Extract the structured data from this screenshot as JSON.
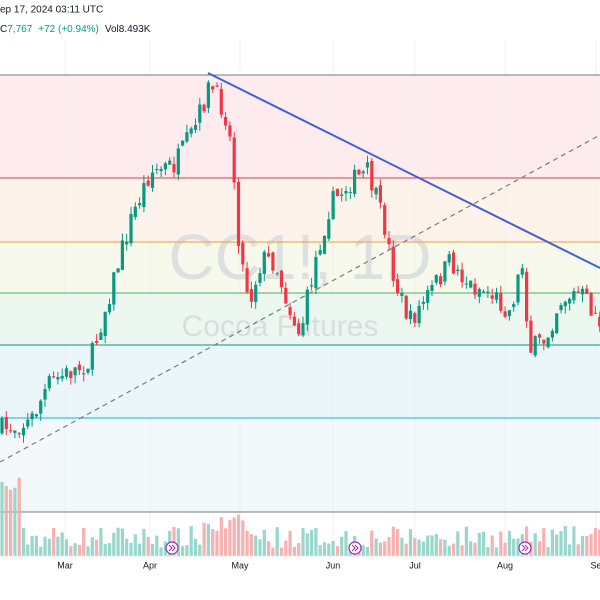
{
  "header": {
    "timestamp": "ep 17, 2024 03:11 UTC",
    "close_label": "C",
    "close": "7,767",
    "change": "+72 (+0.94%)",
    "volume": "Vol8.493K"
  },
  "watermark": {
    "symbol": "CC1!, 1D",
    "name": "Cocoa Futures"
  },
  "time_axis": [
    "Mar",
    "Apr",
    "May",
    "Jun",
    "Jul",
    "Aug",
    "Se"
  ]
}
